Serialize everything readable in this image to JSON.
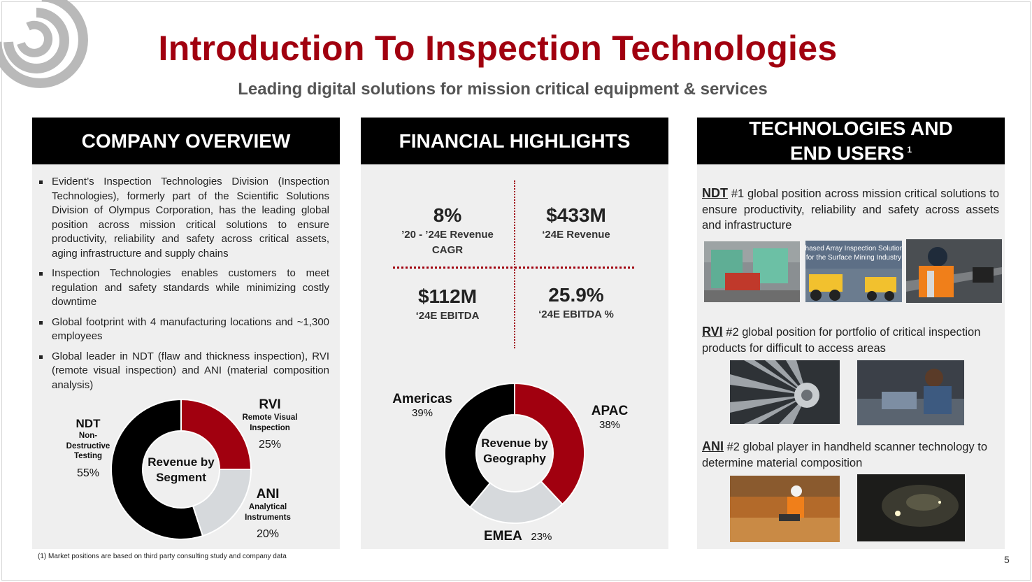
{
  "header": {
    "title": "Introduction To Inspection Technologies",
    "subtitle": "Leading digital solutions for mission critical equipment & services"
  },
  "overview": {
    "heading": "COMPANY OVERVIEW",
    "bullets": [
      "Evident’s Inspection Technologies Division (Inspection Technologies), formerly part of the Scientific Solutions Division of Olympus Corporation, has the leading global position across mission critical solutions to ensure productivity, reliability and safety across critical assets, aging infrastructure and supply chains",
      "Inspection Technologies enables customers to meet regulation and safety standards while minimizing costly downtime",
      "Global footprint with 4 manufacturing locations and ~1,300 employees",
      "Global leader in NDT (flaw and thickness inspection), RVI (remote visual inspection) and ANI (material composition analysis)"
    ]
  },
  "segment_chart": {
    "center_line1": "Revenue by",
    "center_line2": "Segment",
    "segments": [
      {
        "name": "NDT",
        "sub1": "Non-",
        "sub2": "Destructive",
        "sub3": "Testing",
        "pct_label": "55%",
        "value": 55,
        "color": "#000000"
      },
      {
        "name": "RVI",
        "sub1": "Remote Visual",
        "sub2": "Inspection",
        "pct_label": "25%",
        "value": 25,
        "color": "#a1000f"
      },
      {
        "name": "ANI",
        "sub1": "Analytical",
        "sub2": "Instruments",
        "pct_label": "20%",
        "value": 20,
        "color": "#d6d9dc"
      }
    ]
  },
  "financial": {
    "heading": "FINANCIAL HIGHLIGHTS",
    "metrics": [
      {
        "value": "8%",
        "label1": "’20 - ’24E Revenue",
        "label2": "CAGR"
      },
      {
        "value": "$433M",
        "label1": "‘24E Revenue",
        "label2": ""
      },
      {
        "value": "$112M",
        "label1": "‘24E EBITDA",
        "label2": ""
      },
      {
        "value": "25.9%",
        "label1": "‘24E EBITDA %",
        "label2": ""
      }
    ]
  },
  "geo_chart": {
    "center_line1": "Revenue by",
    "center_line2": "Geography",
    "segments": [
      {
        "name": "APAC",
        "pct_label": "38%",
        "value": 38,
        "color": "#a1000f"
      },
      {
        "name": "EMEA",
        "pct_label": "23%",
        "value": 23,
        "color": "#d6d9dc"
      },
      {
        "name": "Americas",
        "pct_label": "39%",
        "value": 39,
        "color": "#000000"
      }
    ]
  },
  "technologies": {
    "heading_line1": "TECHNOLOGIES AND",
    "heading_line2": "END USERS",
    "heading_sup": "1",
    "items": [
      {
        "abbr": "NDT",
        "text": " #1 global position across mission critical solutions to ensure productivity, reliability and safety across assets and infrastructure"
      },
      {
        "abbr": "RVI",
        "text": " #2 global position for portfolio of critical inspection products for difficult to access areas"
      },
      {
        "abbr": "ANI",
        "text": " #2 global player in handheld scanner technology to determine material composition"
      }
    ],
    "photo_caption_line1": "Phased Array Inspection Solutions",
    "photo_caption_line2": "for the Surface Mining Industry"
  },
  "footnote": "(1) Market positions are based on third party consulting study and company data",
  "page_number": "5",
  "colors": {
    "accent": "#a1000f",
    "dark": "#000000",
    "grey": "#d6d9dc",
    "panel_bg": "#efefef"
  }
}
